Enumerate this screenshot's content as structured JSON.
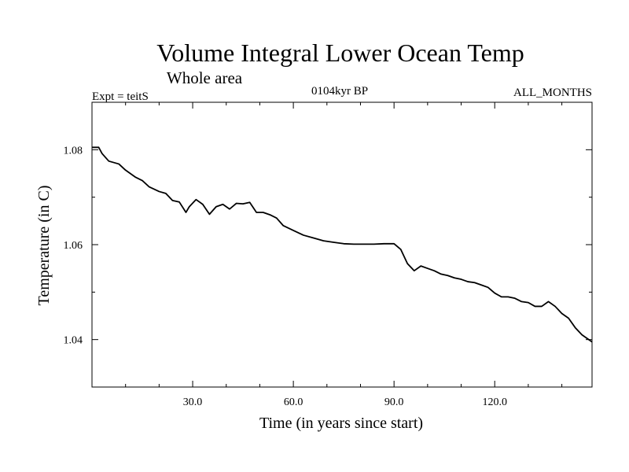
{
  "chart_data": {
    "type": "line",
    "title": "Volume Integral Lower Ocean Temp",
    "subtitle": "Whole area",
    "experiment": "Expt = teitS",
    "period": "0104kyr BP",
    "months": "ALL_MONTHS",
    "xlabel": "Time (in years since start)",
    "ylabel": "Temperature (in C)",
    "xlim": [
      0,
      149
    ],
    "ylim": [
      1.03,
      1.09
    ],
    "xticks_major": [
      30,
      60,
      90,
      120
    ],
    "xtick_labels": [
      "30.0",
      "60.0",
      "90.0",
      "120.0"
    ],
    "xticks_minor": [
      10,
      20,
      40,
      50,
      70,
      80,
      100,
      110,
      130,
      140
    ],
    "yticks_major": [
      1.04,
      1.06,
      1.08
    ],
    "ytick_labels": [
      "1.04",
      "1.06",
      "1.08"
    ],
    "yticks_minor": [
      1.03,
      1.05,
      1.07,
      1.09
    ],
    "grid": false,
    "series": [
      {
        "name": "Temperature",
        "color": "#000000",
        "x": [
          0,
          2,
          3,
          5,
          8,
          10,
          13,
          15,
          17,
          20,
          22,
          24,
          26,
          28,
          29,
          31,
          33,
          35,
          37,
          39,
          41,
          43,
          45,
          47,
          49,
          51,
          53,
          55,
          57,
          60,
          63,
          66,
          69,
          72,
          75,
          78,
          81,
          84,
          87,
          90,
          92,
          94,
          96,
          98,
          100,
          102,
          104,
          106,
          108,
          110,
          112,
          114,
          116,
          118,
          120,
          122,
          124,
          126,
          128,
          130,
          132,
          134,
          136,
          138,
          140,
          142,
          144,
          146,
          148,
          149
        ],
        "y": [
          1.0805,
          1.0805,
          1.0792,
          1.0776,
          1.077,
          1.0757,
          1.0742,
          1.0735,
          1.0722,
          1.0712,
          1.0708,
          1.0693,
          1.069,
          1.0668,
          1.068,
          1.0695,
          1.0685,
          1.0664,
          1.068,
          1.0685,
          1.0675,
          1.0687,
          1.0686,
          1.0689,
          1.0668,
          1.0668,
          1.0663,
          1.0656,
          1.064,
          1.063,
          1.062,
          1.0614,
          1.0608,
          1.0605,
          1.0602,
          1.0601,
          1.0601,
          1.0601,
          1.0602,
          1.0602,
          1.059,
          1.056,
          1.0545,
          1.0555,
          1.055,
          1.0545,
          1.0538,
          1.0535,
          1.053,
          1.0527,
          1.0522,
          1.052,
          1.0515,
          1.051,
          1.0498,
          1.049,
          1.049,
          1.0487,
          1.048,
          1.0478,
          1.047,
          1.047,
          1.048,
          1.047,
          1.0455,
          1.0445,
          1.0425,
          1.041,
          1.04,
          1.0395
        ]
      }
    ]
  }
}
